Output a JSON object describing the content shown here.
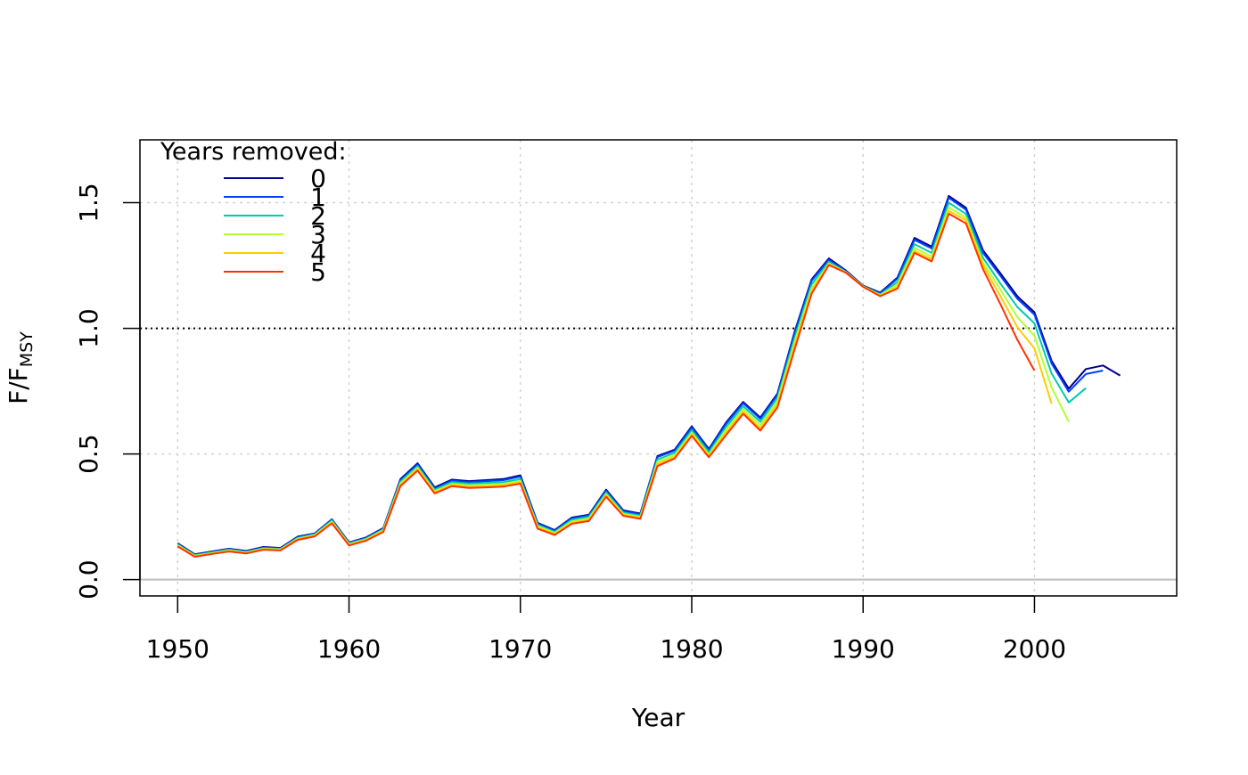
{
  "chart_data": {
    "type": "line",
    "title": "",
    "xlabel": "Year",
    "ylabel": {
      "main": "F/F",
      "sub": "MSY"
    },
    "xlim": [
      1947.8,
      2008.3
    ],
    "ylim": [
      -0.065,
      1.75
    ],
    "x_ticks": [
      1950,
      1960,
      1970,
      1980,
      1990,
      2000
    ],
    "y_ticks": [
      0.0,
      0.5,
      1.0,
      1.5
    ],
    "y_tick_labels": [
      "0.0",
      "0.5",
      "1.0",
      "1.5"
    ],
    "grid": true,
    "reference_lines": [
      {
        "y": 1.0,
        "style": "dotted",
        "color": "#000000"
      },
      {
        "y": 0.0,
        "style": "solid",
        "color": "#bebebe"
      }
    ],
    "legend": {
      "title": "Years removed:",
      "placement": "top-left",
      "entries": [
        "0",
        "1",
        "2",
        "3",
        "4",
        "5"
      ]
    },
    "series": [
      {
        "name": "0",
        "color": "#00008b",
        "x": [
          1950,
          1951,
          1952,
          1953,
          1954,
          1955,
          1956,
          1957,
          1958,
          1959,
          1960,
          1961,
          1962,
          1963,
          1964,
          1965,
          1966,
          1967,
          1968,
          1969,
          1970,
          1971,
          1972,
          1973,
          1974,
          1975,
          1976,
          1977,
          1978,
          1979,
          1980,
          1981,
          1982,
          1983,
          1984,
          1985,
          1986,
          1987,
          1988,
          1989,
          1990,
          1991,
          1992,
          1993,
          1994,
          1995,
          1996,
          1997,
          1998,
          1999,
          2000,
          2001,
          2002,
          2003,
          2004,
          2005
        ],
        "y": [
          0.145,
          0.101,
          0.112,
          0.123,
          0.114,
          0.13,
          0.126,
          0.171,
          0.184,
          0.24,
          0.148,
          0.168,
          0.205,
          0.4,
          0.463,
          0.367,
          0.398,
          0.392,
          0.396,
          0.4,
          0.415,
          0.226,
          0.197,
          0.247,
          0.258,
          0.358,
          0.276,
          0.263,
          0.492,
          0.517,
          0.61,
          0.52,
          0.625,
          0.707,
          0.645,
          0.74,
          0.985,
          1.195,
          1.278,
          1.23,
          1.17,
          1.142,
          1.202,
          1.36,
          1.325,
          1.527,
          1.48,
          1.31,
          1.22,
          1.128,
          1.064,
          0.87,
          0.76,
          0.838,
          0.852,
          0.812
        ]
      },
      {
        "name": "1",
        "color": "#0040ff",
        "x": [
          1950,
          1951,
          1952,
          1953,
          1954,
          1955,
          1956,
          1957,
          1958,
          1959,
          1960,
          1961,
          1962,
          1963,
          1964,
          1965,
          1966,
          1967,
          1968,
          1969,
          1970,
          1971,
          1972,
          1973,
          1974,
          1975,
          1976,
          1977,
          1978,
          1979,
          1980,
          1981,
          1982,
          1983,
          1984,
          1985,
          1986,
          1987,
          1988,
          1989,
          1990,
          1991,
          1992,
          1993,
          1994,
          1995,
          1996,
          1997,
          1998,
          1999,
          2000,
          2001,
          2002,
          2003,
          2004
        ],
        "y": [
          0.143,
          0.099,
          0.11,
          0.121,
          0.112,
          0.128,
          0.124,
          0.169,
          0.182,
          0.238,
          0.146,
          0.166,
          0.203,
          0.396,
          0.458,
          0.363,
          0.394,
          0.388,
          0.392,
          0.396,
          0.41,
          0.223,
          0.195,
          0.244,
          0.255,
          0.354,
          0.273,
          0.26,
          0.488,
          0.513,
          0.605,
          0.516,
          0.62,
          0.702,
          0.64,
          0.735,
          0.978,
          1.19,
          1.272,
          1.227,
          1.168,
          1.139,
          1.198,
          1.352,
          1.318,
          1.52,
          1.472,
          1.3,
          1.21,
          1.118,
          1.055,
          0.86,
          0.748,
          0.818,
          0.832
        ]
      },
      {
        "name": "2",
        "color": "#00ccaa",
        "x": [
          1950,
          1951,
          1952,
          1953,
          1954,
          1955,
          1956,
          1957,
          1958,
          1959,
          1960,
          1961,
          1962,
          1963,
          1964,
          1965,
          1966,
          1967,
          1968,
          1969,
          1970,
          1971,
          1972,
          1973,
          1974,
          1975,
          1976,
          1977,
          1978,
          1979,
          1980,
          1981,
          1982,
          1983,
          1984,
          1985,
          1986,
          1987,
          1988,
          1989,
          1990,
          1991,
          1992,
          1993,
          1994,
          1995,
          1996,
          1997,
          1998,
          1999,
          2000,
          2001,
          2002,
          2003
        ],
        "y": [
          0.14,
          0.097,
          0.108,
          0.119,
          0.11,
          0.125,
          0.122,
          0.166,
          0.18,
          0.235,
          0.144,
          0.163,
          0.2,
          0.39,
          0.452,
          0.358,
          0.388,
          0.382,
          0.385,
          0.388,
          0.4,
          0.218,
          0.19,
          0.238,
          0.25,
          0.347,
          0.267,
          0.255,
          0.478,
          0.504,
          0.595,
          0.507,
          0.608,
          0.69,
          0.628,
          0.723,
          0.962,
          1.175,
          1.265,
          1.225,
          1.168,
          1.135,
          1.185,
          1.335,
          1.3,
          1.5,
          1.455,
          1.28,
          1.18,
          1.085,
          1.02,
          0.82,
          0.705,
          0.762
        ]
      },
      {
        "name": "3",
        "color": "#b3ff33",
        "x": [
          1950,
          1951,
          1952,
          1953,
          1954,
          1955,
          1956,
          1957,
          1958,
          1959,
          1960,
          1961,
          1962,
          1963,
          1964,
          1965,
          1966,
          1967,
          1968,
          1969,
          1970,
          1971,
          1972,
          1973,
          1974,
          1975,
          1976,
          1977,
          1978,
          1979,
          1980,
          1981,
          1982,
          1983,
          1984,
          1985,
          1986,
          1987,
          1988,
          1989,
          1990,
          1991,
          1992,
          1993,
          1994,
          1995,
          1996,
          1997,
          1998,
          1999,
          2000,
          2001,
          2002
        ],
        "y": [
          0.137,
          0.095,
          0.106,
          0.116,
          0.108,
          0.123,
          0.12,
          0.163,
          0.177,
          0.231,
          0.141,
          0.16,
          0.197,
          0.383,
          0.445,
          0.352,
          0.381,
          0.375,
          0.378,
          0.381,
          0.393,
          0.213,
          0.186,
          0.232,
          0.243,
          0.34,
          0.262,
          0.25,
          0.468,
          0.495,
          0.585,
          0.498,
          0.596,
          0.678,
          0.615,
          0.71,
          0.945,
          1.16,
          1.258,
          1.223,
          1.167,
          1.132,
          1.175,
          1.32,
          1.285,
          1.482,
          1.44,
          1.262,
          1.155,
          1.045,
          0.97,
          0.765,
          0.628
        ]
      },
      {
        "name": "4",
        "color": "#ffcc00",
        "x": [
          1950,
          1951,
          1952,
          1953,
          1954,
          1955,
          1956,
          1957,
          1958,
          1959,
          1960,
          1961,
          1962,
          1963,
          1964,
          1965,
          1966,
          1967,
          1968,
          1969,
          1970,
          1971,
          1972,
          1973,
          1974,
          1975,
          1976,
          1977,
          1978,
          1979,
          1980,
          1981,
          1982,
          1983,
          1984,
          1985,
          1986,
          1987,
          1988,
          1989,
          1990,
          1991,
          1992,
          1993,
          1994,
          1995,
          1996,
          1997,
          1998,
          1999,
          2000,
          2001
        ],
        "y": [
          0.135,
          0.093,
          0.104,
          0.114,
          0.106,
          0.121,
          0.118,
          0.161,
          0.175,
          0.228,
          0.139,
          0.158,
          0.194,
          0.378,
          0.44,
          0.348,
          0.377,
          0.37,
          0.372,
          0.375,
          0.388,
          0.208,
          0.182,
          0.227,
          0.238,
          0.335,
          0.258,
          0.246,
          0.46,
          0.488,
          0.578,
          0.492,
          0.585,
          0.668,
          0.603,
          0.698,
          0.93,
          1.148,
          1.255,
          1.222,
          1.166,
          1.13,
          1.165,
          1.308,
          1.275,
          1.468,
          1.43,
          1.25,
          1.13,
          1.005,
          0.92,
          0.7
        ]
      },
      {
        "name": "5",
        "color": "#ff3300",
        "x": [
          1950,
          1951,
          1952,
          1953,
          1954,
          1955,
          1956,
          1957,
          1958,
          1959,
          1960,
          1961,
          1962,
          1963,
          1964,
          1965,
          1966,
          1967,
          1968,
          1969,
          1970,
          1971,
          1972,
          1973,
          1974,
          1975,
          1976,
          1977,
          1978,
          1979,
          1980,
          1981,
          1982,
          1983,
          1984,
          1985,
          1986,
          1987,
          1988,
          1989,
          1990,
          1991,
          1992,
          1993,
          1994,
          1995,
          1996,
          1997,
          1998,
          1999,
          2000
        ],
        "y": [
          0.132,
          0.091,
          0.102,
          0.112,
          0.104,
          0.119,
          0.116,
          0.158,
          0.172,
          0.224,
          0.136,
          0.155,
          0.19,
          0.372,
          0.434,
          0.343,
          0.372,
          0.365,
          0.367,
          0.37,
          0.382,
          0.203,
          0.178,
          0.222,
          0.233,
          0.33,
          0.254,
          0.242,
          0.452,
          0.482,
          0.572,
          0.487,
          0.575,
          0.66,
          0.593,
          0.685,
          0.915,
          1.138,
          1.252,
          1.221,
          1.165,
          1.128,
          1.158,
          1.3,
          1.266,
          1.456,
          1.418,
          1.235,
          1.098,
          0.955,
          0.832
        ]
      }
    ]
  }
}
